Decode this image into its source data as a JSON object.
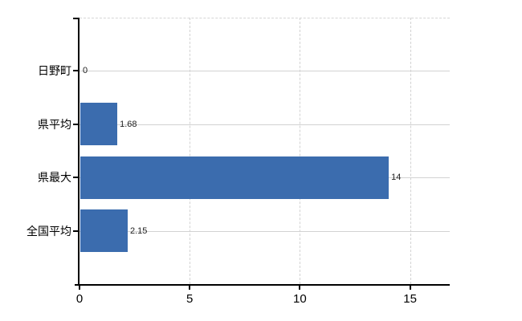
{
  "chart_data": {
    "type": "bar",
    "orientation": "horizontal",
    "title": "",
    "categories": [
      "日野町",
      "県平均",
      "県最大",
      "全国平均"
    ],
    "values": [
      0,
      1.68,
      14,
      2.15
    ],
    "value_labels": [
      "0",
      "1.68",
      "14",
      "2.15"
    ],
    "x_ticks": [
      0,
      5,
      10,
      15
    ],
    "x_tick_labels": [
      "0",
      "5",
      "10",
      "15"
    ],
    "xlim": [
      0,
      16.8
    ],
    "grid": true,
    "legend": false,
    "colors": {
      "bar": "#3b6cae",
      "axis": "#000000",
      "grid_h": "#d2d2d2",
      "grid_v": "#d2d2d2",
      "category_label": "#000000",
      "value_label": "#222222",
      "background": "#ffffff"
    }
  }
}
